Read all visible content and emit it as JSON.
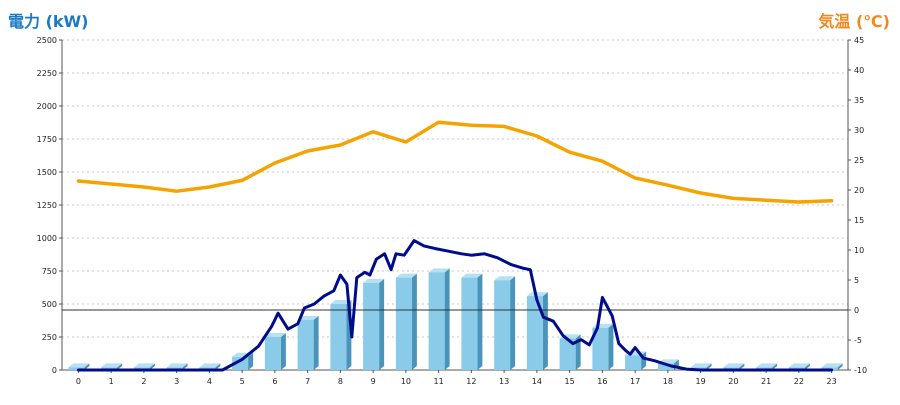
{
  "colors": {
    "power_axis_title": "#1a7ac6",
    "temp_axis_title": "#f08a1c",
    "power_line": "#000c8a",
    "temp_line": "#f5a300",
    "bar_front": "#89cbe8",
    "bar_side": "#4a93b9",
    "bar_top": "#b7e1f3",
    "grid": "#c8c8c8",
    "zero_line": "#333333"
  },
  "chart_data": {
    "type": "bar",
    "left_axis": {
      "title": "電力 (kW)",
      "ticks": [
        0,
        250,
        500,
        750,
        1000,
        1250,
        1500,
        1750,
        2000,
        2250,
        2500
      ],
      "ylim": [
        0,
        2500
      ]
    },
    "right_axis": {
      "title": "気温 (℃)",
      "ticks": [
        -10,
        -5,
        0,
        5,
        10,
        15,
        20,
        25,
        30,
        35,
        40,
        45
      ],
      "ylim": [
        -10,
        45
      ]
    },
    "grid": true,
    "categories": [
      "0",
      "1",
      "2",
      "3",
      "4",
      "5",
      "6",
      "7",
      "8",
      "9",
      "10",
      "11",
      "12",
      "13",
      "14",
      "15",
      "16",
      "17",
      "18",
      "19",
      "20",
      "21",
      "22",
      "23"
    ],
    "series": [
      {
        "type": "bar",
        "axis": "left",
        "values": [
          20,
          20,
          20,
          20,
          20,
          100,
          250,
          380,
          500,
          660,
          700,
          740,
          700,
          680,
          560,
          240,
          320,
          110,
          50,
          20,
          20,
          20,
          20,
          20
        ]
      },
      {
        "type": "line",
        "axis": "left",
        "points": [
          [
            0,
            0
          ],
          [
            1,
            0
          ],
          [
            2,
            0
          ],
          [
            3,
            0
          ],
          [
            4,
            0
          ],
          [
            4.4,
            0
          ],
          [
            5,
            80
          ],
          [
            5.5,
            180
          ],
          [
            5.9,
            330
          ],
          [
            6.1,
            430
          ],
          [
            6.4,
            310
          ],
          [
            6.7,
            350
          ],
          [
            6.9,
            470
          ],
          [
            7.2,
            500
          ],
          [
            7.5,
            560
          ],
          [
            7.8,
            600
          ],
          [
            8.0,
            720
          ],
          [
            8.2,
            650
          ],
          [
            8.35,
            250
          ],
          [
            8.5,
            700
          ],
          [
            8.75,
            740
          ],
          [
            8.9,
            720
          ],
          [
            9.1,
            840
          ],
          [
            9.35,
            880
          ],
          [
            9.55,
            760
          ],
          [
            9.7,
            880
          ],
          [
            9.95,
            870
          ],
          [
            10.25,
            980
          ],
          [
            10.55,
            940
          ],
          [
            10.9,
            920
          ],
          [
            11.3,
            900
          ],
          [
            11.7,
            880
          ],
          [
            12.0,
            870
          ],
          [
            12.4,
            880
          ],
          [
            12.8,
            850
          ],
          [
            13.2,
            800
          ],
          [
            13.6,
            770
          ],
          [
            13.8,
            760
          ],
          [
            14.0,
            530
          ],
          [
            14.2,
            400
          ],
          [
            14.5,
            370
          ],
          [
            14.8,
            260
          ],
          [
            15.1,
            200
          ],
          [
            15.35,
            230
          ],
          [
            15.6,
            190
          ],
          [
            15.85,
            320
          ],
          [
            16.0,
            550
          ],
          [
            16.3,
            410
          ],
          [
            16.5,
            200
          ],
          [
            16.7,
            150
          ],
          [
            16.85,
            120
          ],
          [
            17.0,
            170
          ],
          [
            17.25,
            90
          ],
          [
            17.6,
            70
          ],
          [
            18.1,
            30
          ],
          [
            18.6,
            5
          ],
          [
            19,
            0
          ],
          [
            20,
            0
          ],
          [
            21,
            0
          ],
          [
            22,
            0
          ],
          [
            23,
            0
          ]
        ]
      },
      {
        "type": "line",
        "axis": "right",
        "x": [
          0,
          1,
          2,
          3,
          4,
          5,
          6,
          7,
          8,
          9,
          10,
          11,
          12,
          13,
          14,
          15,
          16,
          17,
          18,
          19,
          20,
          21,
          22,
          23
        ],
        "values": [
          21.5,
          21.0,
          20.5,
          19.8,
          20.5,
          21.6,
          24.5,
          26.5,
          27.5,
          29.7,
          28.0,
          31.3,
          30.8,
          30.6,
          29.0,
          26.3,
          24.8,
          22.0,
          20.8,
          19.5,
          18.6,
          18.3,
          18.0,
          18.2
        ]
      }
    ]
  }
}
